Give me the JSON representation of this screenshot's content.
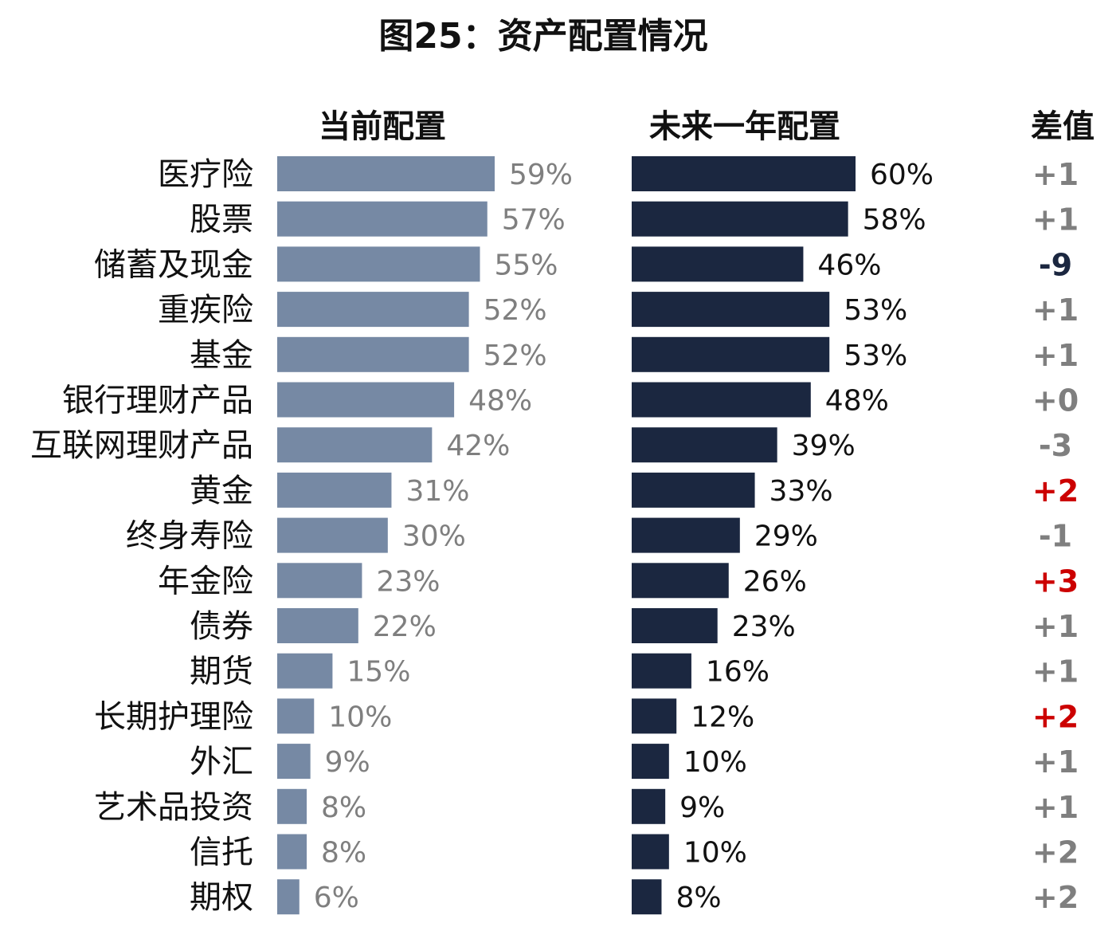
{
  "chart_data": {
    "type": "bar",
    "title": "图25：资产配置情况",
    "column_headers": {
      "current": "当前配置",
      "future": "未来一年配置",
      "diff": "差值"
    },
    "categories": [
      "医疗险",
      "股票",
      "储蓄及现金",
      "重疾险",
      "基金",
      "银行理财产品",
      "互联网理财产品",
      "黄金",
      "终身寿险",
      "年金险",
      "债券",
      "期货",
      "长期护理险",
      "外汇",
      "艺术品投资",
      "信托",
      "期权"
    ],
    "series": [
      {
        "name": "当前配置",
        "values": [
          59,
          57,
          55,
          52,
          52,
          48,
          42,
          31,
          30,
          23,
          22,
          15,
          10,
          9,
          8,
          8,
          6
        ],
        "labels": [
          "59%",
          "57%",
          "55%",
          "52%",
          "52%",
          "48%",
          "42%",
          "31%",
          "30%",
          "23%",
          "22%",
          "15%",
          "10%",
          "9%",
          "8%",
          "8%",
          "6%"
        ],
        "color": "#7689a4"
      },
      {
        "name": "未来一年配置",
        "values": [
          60,
          58,
          46,
          53,
          53,
          48,
          39,
          33,
          29,
          26,
          23,
          16,
          12,
          10,
          9,
          10,
          8
        ],
        "labels": [
          "60%",
          "58%",
          "46%",
          "53%",
          "53%",
          "48%",
          "39%",
          "33%",
          "29%",
          "26%",
          "23%",
          "16%",
          "12%",
          "10%",
          "9%",
          "10%",
          "8%"
        ],
        "color": "#1b2740"
      }
    ],
    "diff": {
      "labels": [
        "+1",
        "+1",
        "-9",
        "+1",
        "+1",
        "+0",
        "-3",
        "+2",
        "-1",
        "+3",
        "+1",
        "+1",
        "+2",
        "+1",
        "+1",
        "+2",
        "+2"
      ],
      "colors": [
        "#7f7f7f",
        "#7f7f7f",
        "#1b2740",
        "#7f7f7f",
        "#7f7f7f",
        "#7f7f7f",
        "#7f7f7f",
        "#cc0000",
        "#7f7f7f",
        "#cc0000",
        "#7f7f7f",
        "#7f7f7f",
        "#cc0000",
        "#7f7f7f",
        "#7f7f7f",
        "#7f7f7f",
        "#7f7f7f"
      ]
    },
    "value_label_colors": {
      "current": "#7f7f7f",
      "future": "#111111"
    },
    "grid": false,
    "legend": "none"
  }
}
